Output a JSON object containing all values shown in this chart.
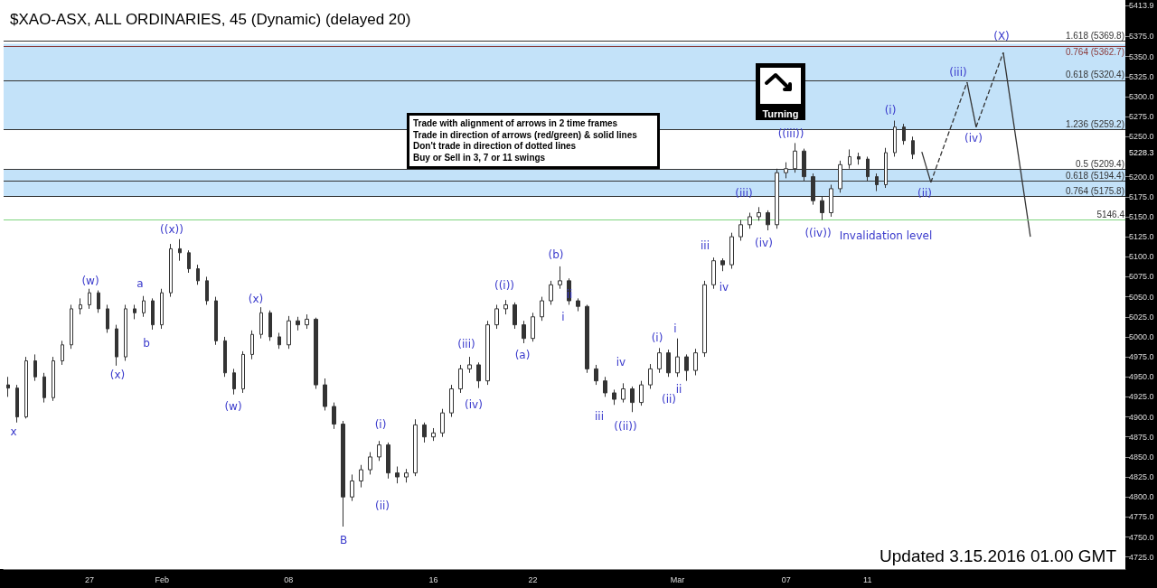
{
  "chart_data": {
    "type": "candlestick",
    "title": "$XAO-ASX, ALL ORDINARIES, 45 (Dynamic) (delayed 20)",
    "color": "#333333",
    "categories": [
      null,
      null,
      null,
      null,
      null,
      null,
      null,
      null,
      null,
      "27",
      null,
      null,
      null,
      null,
      null,
      null,
      null,
      "Feb",
      null,
      null,
      null,
      null,
      null,
      null,
      null,
      null,
      null,
      null,
      null,
      null,
      null,
      "08",
      null,
      null,
      null,
      null,
      null,
      null,
      null,
      null,
      null,
      null,
      null,
      null,
      null,
      null,
      null,
      "16",
      null,
      null,
      null,
      null,
      null,
      null,
      null,
      null,
      null,
      null,
      "22",
      null,
      null,
      null,
      null,
      null,
      null,
      null,
      null,
      null,
      null,
      null,
      null,
      null,
      null,
      null,
      "Mar",
      null,
      null,
      null,
      null,
      null,
      null,
      null,
      null,
      null,
      null,
      null,
      "07",
      null,
      null,
      null,
      null,
      null,
      null,
      null,
      null,
      "11",
      null,
      null,
      null,
      null,
      null,
      null,
      null,
      null,
      null,
      null,
      null,
      null,
      null,
      null,
      null,
      null,
      null,
      null,
      null,
      null,
      null,
      null,
      null,
      null,
      null,
      null,
      null,
      null
    ],
    "ohlc": [
      [
        4940,
        4950,
        4925,
        4936
      ],
      [
        4936,
        4940,
        4893,
        4900
      ],
      [
        4900,
        4975,
        4898,
        4970
      ],
      [
        4970,
        4978,
        4945,
        4950
      ],
      [
        4950,
        4955,
        4918,
        4924
      ],
      [
        4924,
        4975,
        4920,
        4970
      ],
      [
        4970,
        4995,
        4965,
        4990
      ],
      [
        4990,
        5040,
        4985,
        5035
      ],
      [
        5035,
        5048,
        5028,
        5040
      ],
      [
        5040,
        5060,
        5035,
        5055
      ],
      [
        5055,
        5058,
        5030,
        5035
      ],
      [
        5035,
        5040,
        5005,
        5010
      ],
      [
        5010,
        5015,
        4964,
        4975
      ],
      [
        4975,
        5040,
        4970,
        5035
      ],
      [
        5035,
        5040,
        5022,
        5030
      ],
      [
        5030,
        5051,
        5025,
        5045
      ],
      [
        5045,
        5048,
        5009,
        5015
      ],
      [
        5015,
        5060,
        5010,
        5055
      ],
      [
        5055,
        5116,
        5050,
        5110
      ],
      [
        5110,
        5122,
        5095,
        5105
      ],
      [
        5105,
        5108,
        5080,
        5085
      ],
      [
        5085,
        5090,
        5065,
        5070
      ],
      [
        5070,
        5075,
        5040,
        5045
      ],
      [
        5045,
        5050,
        4990,
        4995
      ],
      [
        4995,
        5000,
        4950,
        4955
      ],
      [
        4955,
        4960,
        4928,
        4935
      ],
      [
        4935,
        4982,
        4930,
        4978
      ],
      [
        4978,
        5008,
        4972,
        5003
      ],
      [
        5003,
        5037,
        4998,
        5030
      ],
      [
        5030,
        5033,
        4995,
        5000
      ],
      [
        5000,
        5005,
        4985,
        4990
      ],
      [
        4990,
        5026,
        4985,
        5020
      ],
      [
        5020,
        5025,
        5008,
        5015
      ],
      [
        5015,
        5028,
        5010,
        5022
      ],
      [
        5022,
        5024,
        4935,
        4940
      ],
      [
        4940,
        4948,
        4908,
        4913
      ],
      [
        4913,
        4918,
        4885,
        4891
      ],
      [
        4891,
        4895,
        4763,
        4800
      ],
      [
        4800,
        4828,
        4795,
        4820
      ],
      [
        4820,
        4840,
        4812,
        4834
      ],
      [
        4834,
        4856,
        4828,
        4850
      ],
      [
        4850,
        4870,
        4845,
        4865
      ],
      [
        4865,
        4868,
        4823,
        4830
      ],
      [
        4830,
        4838,
        4817,
        4825
      ],
      [
        4825,
        4835,
        4818,
        4830
      ],
      [
        4830,
        4897,
        4826,
        4890
      ],
      [
        4890,
        4893,
        4868,
        4875
      ],
      [
        4875,
        4886,
        4870,
        4880
      ],
      [
        4880,
        4910,
        4875,
        4905
      ],
      [
        4905,
        4940,
        4900,
        4935
      ],
      [
        4935,
        4965,
        4930,
        4960
      ],
      [
        4960,
        4975,
        4955,
        4965
      ],
      [
        4965,
        4968,
        4936,
        4945
      ],
      [
        4945,
        5020,
        4940,
        5015
      ],
      [
        5015,
        5040,
        5010,
        5035
      ],
      [
        5035,
        5046,
        5028,
        5040
      ],
      [
        5040,
        5043,
        5010,
        5015
      ],
      [
        5015,
        5020,
        4992,
        4998
      ],
      [
        4998,
        5030,
        4994,
        5025
      ],
      [
        5025,
        5050,
        5020,
        5045
      ],
      [
        5045,
        5070,
        5040,
        5065
      ],
      [
        5065,
        5088,
        5060,
        5070
      ],
      [
        5070,
        5073,
        5040,
        5045
      ],
      [
        5045,
        5048,
        5032,
        5038
      ],
      [
        5038,
        5040,
        4955,
        4960
      ],
      [
        4960,
        4965,
        4940,
        4945
      ],
      [
        4945,
        4950,
        4925,
        4930
      ],
      [
        4930,
        4934,
        4915,
        4922
      ],
      [
        4922,
        4942,
        4918,
        4935
      ],
      [
        4935,
        4938,
        4906,
        4918
      ],
      [
        4918,
        4945,
        4914,
        4940
      ],
      [
        4940,
        4966,
        4935,
        4960
      ],
      [
        4960,
        4986,
        4955,
        4980
      ],
      [
        4980,
        4984,
        4950,
        4955
      ],
      [
        4955,
        4998,
        4950,
        4975
      ],
      [
        4975,
        4978,
        4945,
        4958
      ],
      [
        4958,
        4985,
        4952,
        4980
      ],
      [
        4980,
        5070,
        4975,
        5065
      ],
      [
        5065,
        5099,
        5060,
        5095
      ],
      [
        5095,
        5098,
        5082,
        5090
      ],
      [
        5090,
        5130,
        5085,
        5125
      ],
      [
        5125,
        5146,
        5120,
        5140
      ],
      [
        5140,
        5155,
        5135,
        5150
      ],
      [
        5150,
        5162,
        5145,
        5155
      ],
      [
        5155,
        5158,
        5133,
        5140
      ],
      [
        5140,
        5210,
        5135,
        5205
      ],
      [
        5205,
        5218,
        5198,
        5210
      ],
      [
        5210,
        5242,
        5205,
        5232
      ],
      [
        5232,
        5235,
        5195,
        5200
      ],
      [
        5200,
        5204,
        5165,
        5170
      ],
      [
        5170,
        5175,
        5146,
        5155
      ],
      [
        5155,
        5190,
        5150,
        5185
      ],
      [
        5185,
        5220,
        5180,
        5215
      ],
      [
        5215,
        5234,
        5210,
        5225
      ],
      [
        5225,
        5230,
        5215,
        5222
      ],
      [
        5222,
        5225,
        5195,
        5200
      ],
      [
        5200,
        5204,
        5182,
        5190
      ],
      [
        5190,
        5236,
        5186,
        5230
      ],
      [
        5230,
        5270,
        5225,
        5262
      ],
      [
        5262,
        5266,
        5240,
        5245
      ],
      [
        5245,
        5250,
        5222,
        5228
      ],
      null,
      null,
      null,
      null,
      null,
      null,
      null,
      null,
      null,
      null,
      null,
      null,
      null,
      null,
      null,
      null,
      null,
      null,
      null,
      null,
      null,
      null,
      null
    ],
    "series": [
      {
        "type": "line",
        "color": "#333333",
        "line_style": "solid",
        "values": [
          null,
          null,
          null,
          null,
          null,
          null,
          null,
          null,
          null,
          null,
          null,
          null,
          null,
          null,
          null,
          null,
          null,
          null,
          null,
          null,
          null,
          null,
          null,
          null,
          null,
          null,
          null,
          null,
          null,
          null,
          null,
          null,
          null,
          null,
          null,
          null,
          null,
          null,
          null,
          null,
          null,
          null,
          null,
          null,
          null,
          null,
          null,
          null,
          null,
          null,
          null,
          null,
          null,
          null,
          null,
          null,
          null,
          null,
          null,
          null,
          null,
          null,
          null,
          null,
          null,
          null,
          null,
          null,
          null,
          null,
          null,
          null,
          null,
          null,
          null,
          null,
          null,
          null,
          null,
          null,
          null,
          null,
          null,
          null,
          null,
          null,
          null,
          null,
          null,
          null,
          null,
          null,
          null,
          null,
          null,
          null,
          null,
          null,
          null,
          null,
          null,
          5231,
          5193,
          null,
          null,
          null,
          null,
          null,
          null,
          null,
          null,
          null,
          null,
          null,
          null,
          null,
          null,
          null,
          null,
          null,
          null,
          null,
          null,
          null
        ]
      },
      {
        "type": "line",
        "color": "#333333",
        "line_style": "dashed",
        "values": [
          null,
          null,
          null,
          null,
          null,
          null,
          null,
          null,
          null,
          null,
          null,
          null,
          null,
          null,
          null,
          null,
          null,
          null,
          null,
          null,
          null,
          null,
          null,
          null,
          null,
          null,
          null,
          null,
          null,
          null,
          null,
          null,
          null,
          null,
          null,
          null,
          null,
          null,
          null,
          null,
          null,
          null,
          null,
          null,
          null,
          null,
          null,
          null,
          null,
          null,
          null,
          null,
          null,
          null,
          null,
          null,
          null,
          null,
          null,
          null,
          null,
          null,
          null,
          null,
          null,
          null,
          null,
          null,
          null,
          null,
          null,
          null,
          null,
          null,
          null,
          null,
          null,
          null,
          null,
          null,
          null,
          null,
          null,
          null,
          null,
          null,
          null,
          null,
          null,
          null,
          null,
          null,
          null,
          null,
          null,
          null,
          null,
          null,
          null,
          null,
          null,
          null,
          5193,
          null,
          null,
          null,
          5318,
          null,
          null,
          null,
          null,
          null,
          null,
          null,
          null,
          null,
          null,
          null,
          null,
          null,
          null,
          null,
          null,
          null
        ]
      },
      {
        "type": "line",
        "color": "#333333",
        "line_style": "solid",
        "values": [
          null,
          null,
          null,
          null,
          null,
          null,
          null,
          null,
          null,
          null,
          null,
          null,
          null,
          null,
          null,
          null,
          null,
          null,
          null,
          null,
          null,
          null,
          null,
          null,
          null,
          null,
          null,
          null,
          null,
          null,
          null,
          null,
          null,
          null,
          null,
          null,
          null,
          null,
          null,
          null,
          null,
          null,
          null,
          null,
          null,
          null,
          null,
          null,
          null,
          null,
          null,
          null,
          null,
          null,
          null,
          null,
          null,
          null,
          null,
          null,
          null,
          null,
          null,
          null,
          null,
          null,
          null,
          null,
          null,
          null,
          null,
          null,
          null,
          null,
          null,
          null,
          null,
          null,
          null,
          null,
          null,
          null,
          null,
          null,
          null,
          null,
          null,
          null,
          null,
          null,
          null,
          null,
          null,
          null,
          null,
          null,
          null,
          null,
          null,
          null,
          null,
          null,
          null,
          null,
          null,
          null,
          5318,
          5262,
          null,
          null,
          null,
          null,
          null,
          null,
          null,
          null,
          null,
          null,
          null,
          null,
          null,
          null,
          null,
          null
        ]
      },
      {
        "type": "line",
        "color": "#333333",
        "line_style": "dashed",
        "values": [
          null,
          null,
          null,
          null,
          null,
          null,
          null,
          null,
          null,
          null,
          null,
          null,
          null,
          null,
          null,
          null,
          null,
          null,
          null,
          null,
          null,
          null,
          null,
          null,
          null,
          null,
          null,
          null,
          null,
          null,
          null,
          null,
          null,
          null,
          null,
          null,
          null,
          null,
          null,
          null,
          null,
          null,
          null,
          null,
          null,
          null,
          null,
          null,
          null,
          null,
          null,
          null,
          null,
          null,
          null,
          null,
          null,
          null,
          null,
          null,
          null,
          null,
          null,
          null,
          null,
          null,
          null,
          null,
          null,
          null,
          null,
          null,
          null,
          null,
          null,
          null,
          null,
          null,
          null,
          null,
          null,
          null,
          null,
          null,
          null,
          null,
          null,
          null,
          null,
          null,
          null,
          null,
          null,
          null,
          null,
          null,
          null,
          null,
          null,
          null,
          null,
          null,
          null,
          null,
          null,
          null,
          null,
          5262,
          null,
          null,
          5355,
          null,
          null,
          null,
          null,
          null,
          null,
          null,
          null,
          null,
          null,
          null,
          null,
          null
        ]
      },
      {
        "type": "line",
        "color": "#333333",
        "line_style": "solid",
        "values": [
          null,
          null,
          null,
          null,
          null,
          null,
          null,
          null,
          null,
          null,
          null,
          null,
          null,
          null,
          null,
          null,
          null,
          null,
          null,
          null,
          null,
          null,
          null,
          null,
          null,
          null,
          null,
          null,
          null,
          null,
          null,
          null,
          null,
          null,
          null,
          null,
          null,
          null,
          null,
          null,
          null,
          null,
          null,
          null,
          null,
          null,
          null,
          null,
          null,
          null,
          null,
          null,
          null,
          null,
          null,
          null,
          null,
          null,
          null,
          null,
          null,
          null,
          null,
          null,
          null,
          null,
          null,
          null,
          null,
          null,
          null,
          null,
          null,
          null,
          null,
          null,
          null,
          null,
          null,
          null,
          null,
          null,
          null,
          null,
          null,
          null,
          null,
          null,
          null,
          null,
          null,
          null,
          null,
          null,
          null,
          null,
          null,
          null,
          null,
          null,
          null,
          null,
          null,
          null,
          null,
          null,
          null,
          null,
          null,
          null,
          5355,
          null,
          null,
          5125,
          null,
          null,
          null,
          null,
          null,
          null,
          null,
          null,
          null,
          null
        ]
      }
    ],
    "ylim": [
      4710,
      5413.9
    ],
    "yticks": [
      {
        "value": 4725,
        "label": "4725.0"
      },
      {
        "value": 4750,
        "label": "4750.0"
      },
      {
        "value": 4775,
        "label": "4775.0"
      },
      {
        "value": 4800,
        "label": "4800.0"
      },
      {
        "value": 4825,
        "label": "4825.0"
      },
      {
        "value": 4850,
        "label": "4850.0"
      },
      {
        "value": 4875,
        "label": "4875.0"
      },
      {
        "value": 4900,
        "label": "4900.0"
      },
      {
        "value": 4925,
        "label": "4925.0"
      },
      {
        "value": 4950,
        "label": "4950.0"
      },
      {
        "value": 4975,
        "label": "4975.0"
      },
      {
        "value": 5000,
        "label": "5000.0"
      },
      {
        "value": 5025,
        "label": "5025.0"
      },
      {
        "value": 5050,
        "label": "5050.0"
      },
      {
        "value": 5075,
        "label": "5075.0"
      },
      {
        "value": 5100,
        "label": "5100.0"
      },
      {
        "value": 5125,
        "label": "5125.0"
      },
      {
        "value": 5150,
        "label": "5150.0"
      },
      {
        "value": 5175,
        "label": "5175.0"
      },
      {
        "value": 5200,
        "label": "5200.0"
      },
      {
        "value": 5250,
        "label": "5250.0"
      },
      {
        "value": 5275,
        "label": "5275.0"
      },
      {
        "value": 5300,
        "label": "5300.0"
      },
      {
        "value": 5325,
        "label": "5325.0"
      },
      {
        "value": 5350,
        "label": "5350.0"
      },
      {
        "value": 5375,
        "label": "5375.0"
      },
      {
        "value": 5413.9,
        "label": "5413.9"
      }
    ],
    "bands": [
      {
        "axis": "y",
        "from": 5259.2,
        "to": 5366,
        "color": "#a9d6f7"
      },
      {
        "axis": "y",
        "from": 5175.8,
        "to": 5209.4,
        "color": "#a9d6f7"
      }
    ],
    "ref_lines": [
      {
        "axis": "y",
        "value": 5369.8,
        "label": "1.618 (5369.8)",
        "color": "#333333"
      },
      {
        "axis": "y",
        "value": 5362.7,
        "label": "0.764 (5362.7)",
        "color": "#8b3a3a"
      },
      {
        "axis": "y",
        "value": 5320.4,
        "label": "0.618 (5320.4)",
        "color": "#333333"
      },
      {
        "axis": "y",
        "value": 5259.2,
        "label": "1.236 (5259.2)",
        "color": "#333333"
      },
      {
        "axis": "y",
        "value": 5209.4,
        "label": "0.5 (5209.4)",
        "color": "#333333"
      },
      {
        "axis": "y",
        "value": 5194.4,
        "label": "0.618 (5194.4)",
        "color": "#333333"
      },
      {
        "axis": "y",
        "value": 5175.8,
        "label": "0.764 (5175.8)",
        "color": "#333333"
      },
      {
        "axis": "y",
        "value": 5146.4,
        "label": "5146.4",
        "color": "#7ed47e"
      }
    ],
    "annotations": [
      "Trade with alignment of arrows in 2 time frames",
      "Trade in direction of arrows (red/green) & solid lines",
      "Don't trade in direction of dotted lines",
      "Buy or Sell in 3, 7 or 11 swings",
      "Turning",
      "Updated 3.15.2016 01.00 GMT",
      "5228.3",
      "x",
      "(w)",
      "(x)",
      "a",
      "b",
      "((x))",
      "(w)",
      "(x)",
      "B",
      "(i)",
      "(ii)",
      "(iii)",
      "(iv)",
      "((i))",
      "(a)",
      "(b)",
      "i",
      "ii",
      "iii",
      "iv",
      "((ii))",
      "(i)",
      "(ii)",
      "i",
      "ii",
      "iii",
      "iv",
      "(iii)",
      "(iv)",
      "((iii))",
      "((iv))",
      "Invalidation level",
      "(i)",
      "(ii)",
      "(iii)",
      "(iv)",
      "(X)"
    ]
  }
}
